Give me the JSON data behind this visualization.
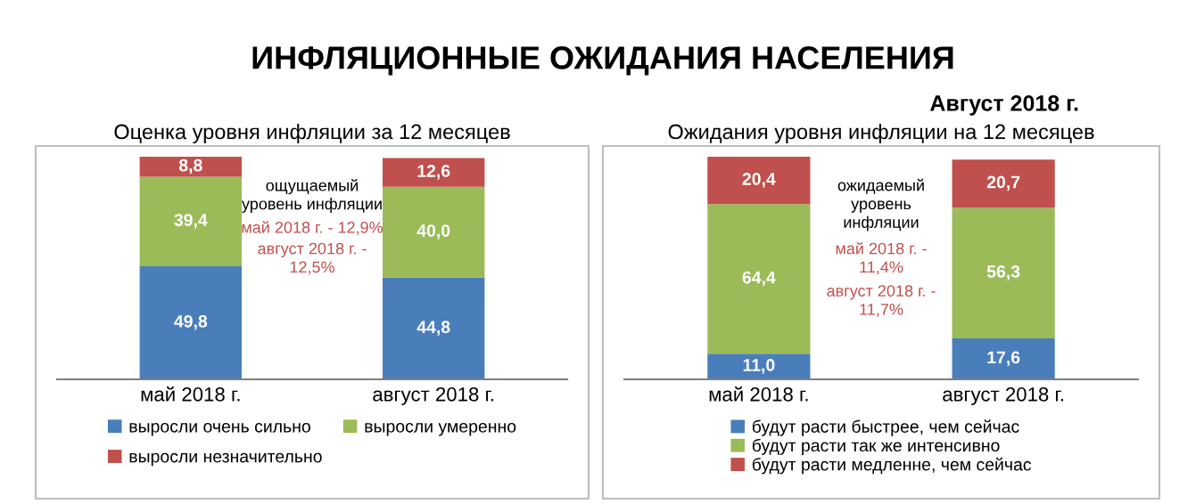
{
  "chart_data": [
    {
      "type": "other",
      "title": "ИНФЛЯЦИОННЫЕ ОЖИДАНИЯ НАСЕЛЕНИЯ",
      "subtitle": "Август 2018 г."
    },
    {
      "type": "bar",
      "stacked": true,
      "title": "Оценка уровня инфляции за 12 месяцев",
      "categories": [
        "май 2018 г.",
        "август 2018 г."
      ],
      "series": [
        {
          "name": "выросли очень сильно",
          "color": "#4a7ebb",
          "values": [
            49.8,
            44.8
          ],
          "value_labels": [
            "49,8",
            "44,8"
          ]
        },
        {
          "name": "выросли умеренно",
          "color": "#9bbb59",
          "values": [
            39.4,
            40.0
          ],
          "value_labels": [
            "39,4",
            "40,0"
          ]
        },
        {
          "name": "выросли незначительно",
          "color": "#c0504d",
          "values": [
            8.8,
            12.6
          ],
          "value_labels": [
            "8,8",
            "12,6"
          ]
        }
      ],
      "annotations": [
        "ощущаемый\nуровень инфляции",
        "май 2018 г. - 12,9%",
        "август 2018 г. -\n12,5%"
      ],
      "legend": "bottom"
    },
    {
      "type": "bar",
      "stacked": true,
      "title": "Ожидания уровня инфляции на 12 месяцев",
      "categories": [
        "май 2018 г.",
        "август 2018 г."
      ],
      "series": [
        {
          "name": "будут расти быстрее, чем сейчас",
          "color": "#4a7ebb",
          "values": [
            11.0,
            17.6
          ],
          "value_labels": [
            "11,0",
            "17,6"
          ]
        },
        {
          "name": "будут расти так же интенсивно",
          "color": "#9bbb59",
          "values": [
            64.4,
            56.3
          ],
          "value_labels": [
            "64,4",
            "56,3"
          ]
        },
        {
          "name": "будут расти медленне, чем сейчас",
          "color": "#c0504d",
          "values": [
            20.4,
            20.7
          ],
          "value_labels": [
            "20,4",
            "20,7"
          ]
        }
      ],
      "annotations": [
        "ожидаемый\nуровень\nинфляции",
        "май 2018 г. -\n11,4%",
        "август 2018 г. -\n11,7%"
      ],
      "legend": "bottom"
    }
  ]
}
